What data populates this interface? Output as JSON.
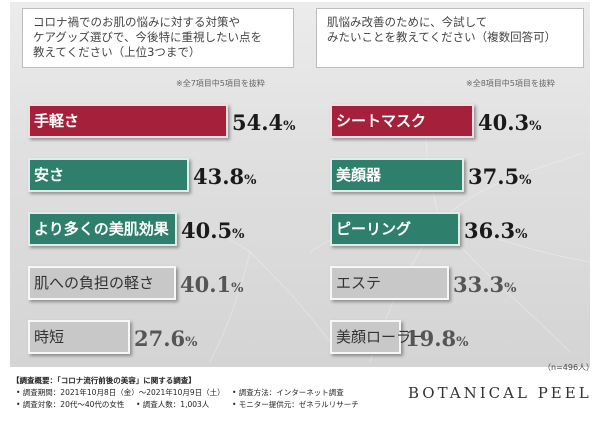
{
  "colors": {
    "top1": "#a5203a",
    "top23": "#2e7f6b",
    "rest": "#c8c8c8"
  },
  "chart_data": [
    {
      "type": "bar",
      "title": "コロナ禍でのお肌の悩みに対する対策やケアグッズ選びで、今後特に重視したい点を教えてください（上位3つまで）",
      "title_lines": [
        "コロナ禍でのお肌の悩みに対する対策や",
        "ケアグッズ選びで、今後特に重視したい点を",
        "教えてください（上位3つまで）"
      ],
      "note": "※全7項目中5項目を抜粋",
      "categories": [
        "手軽さ",
        "安さ",
        "より多くの美肌効果",
        "肌への負担の軽さ",
        "時短"
      ],
      "values": [
        54.4,
        43.8,
        40.5,
        40.1,
        27.6
      ],
      "value_labels": [
        "54.4%",
        "43.8%",
        "40.5%",
        "40.1%",
        "27.6%"
      ],
      "highlight": [
        "top1",
        "top23",
        "top23",
        "rest",
        "rest"
      ],
      "unit": "%"
    },
    {
      "type": "bar",
      "title": "肌悩み改善のために、今試してみたいことを教えてください（複数回答可）",
      "title_lines": [
        "肌悩み改善のために、今試して",
        "みたいことを教えてください（複数回答可）"
      ],
      "note": "※全8項目中5項目を抜粋",
      "categories": [
        "シートマスク",
        "美顔器",
        "ピーリング",
        "エステ",
        "美顔ローラー"
      ],
      "values": [
        40.3,
        37.5,
        36.3,
        33.3,
        19.8
      ],
      "value_labels": [
        "40.3%",
        "37.5%",
        "36.3%",
        "33.3%",
        "19.8%"
      ],
      "highlight": [
        "top1",
        "top23",
        "top23",
        "rest",
        "rest"
      ],
      "unit": "%"
    }
  ],
  "sample_size": "（n=496人）",
  "footer": {
    "title": "【調査概要：「コロナ流行前後の美容」に関する調査】",
    "period": "• 調査期間：2021年10月8日（金）〜2021年10月9日（土）",
    "target": "• 調査対象：20代〜40代の女性",
    "respondents": "• 調査人数：1,003人",
    "method": "• 調査方法：インターネット調査",
    "provider": "• モニター提供元：ゼネラルリサーチ"
  },
  "brand": "BOTANICAL PEEL"
}
